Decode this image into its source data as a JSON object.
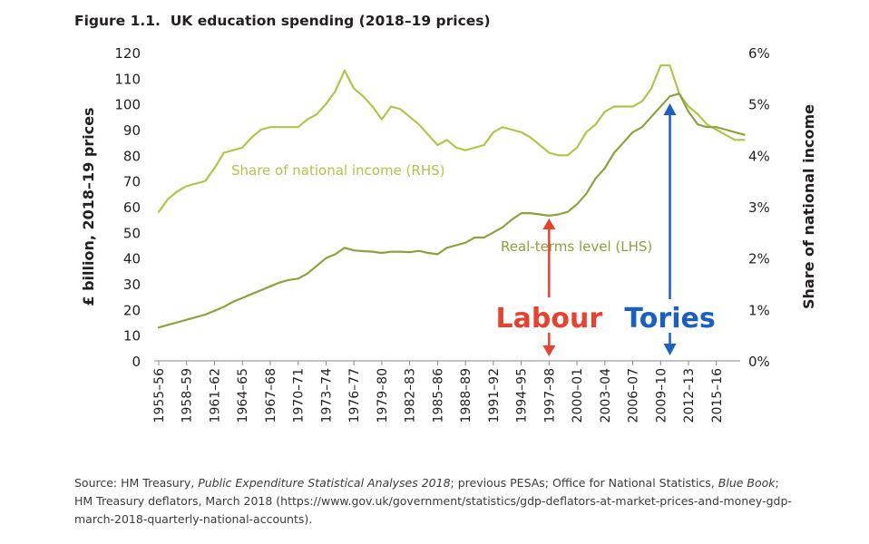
{
  "figure": {
    "title": "Figure 1.1.  UK education spending (2018–19 prices)"
  },
  "chart_data": {
    "type": "line",
    "x_tick_labels": [
      "1955–56",
      "1958–59",
      "1961–62",
      "1964–65",
      "1967–68",
      "1970–71",
      "1973–74",
      "1976–77",
      "1979–80",
      "1982–83",
      "1985–86",
      "1988–89",
      "1991–92",
      "1994–95",
      "1997–98",
      "2000–01",
      "2003–04",
      "2006–07",
      "2009–10",
      "2012–13",
      "2015–16"
    ],
    "x_start_year": 1955,
    "x_end_year": 2018,
    "ylabel_left": "£ billion, 2018–19 prices",
    "ylabel_right": "Share of national income",
    "ylim_left": [
      0,
      120
    ],
    "ylim_right": [
      0,
      6
    ],
    "yticks_left": [
      "0",
      "10",
      "20",
      "30",
      "40",
      "50",
      "60",
      "70",
      "80",
      "90",
      "100",
      "110",
      "120"
    ],
    "yticks_right": [
      "0%",
      "1%",
      "2%",
      "3%",
      "4%",
      "5%",
      "6%"
    ],
    "grid": false,
    "legend": "inline labels",
    "colors": {
      "series": "#b5c34a",
      "level_line": "#8ea13d",
      "labour": "#e8412e",
      "tories": "#1a5fc2"
    },
    "series": [
      {
        "name": "Share of national income (RHS)",
        "axis": "right",
        "x": [
          1955,
          1956,
          1957,
          1958,
          1959,
          1960,
          1961,
          1962,
          1963,
          1964,
          1965,
          1966,
          1967,
          1968,
          1969,
          1970,
          1971,
          1972,
          1973,
          1974,
          1975,
          1976,
          1977,
          1978,
          1979,
          1980,
          1981,
          1982,
          1983,
          1984,
          1985,
          1986,
          1987,
          1988,
          1989,
          1990,
          1991,
          1992,
          1993,
          1994,
          1995,
          1996,
          1997,
          1998,
          1999,
          2000,
          2001,
          2002,
          2003,
          2004,
          2005,
          2006,
          2007,
          2008,
          2009,
          2010,
          2011,
          2012,
          2013,
          2014,
          2015,
          2016,
          2017,
          2018
        ],
        "values": [
          2.9,
          3.15,
          3.3,
          3.4,
          3.45,
          3.5,
          3.75,
          4.05,
          4.1,
          4.15,
          4.35,
          4.5,
          4.55,
          4.55,
          4.55,
          4.55,
          4.7,
          4.8,
          5.0,
          5.25,
          5.65,
          5.3,
          5.15,
          4.95,
          4.7,
          4.95,
          4.9,
          4.75,
          4.6,
          4.4,
          4.2,
          4.3,
          4.15,
          4.1,
          4.15,
          4.2,
          4.45,
          4.55,
          4.5,
          4.45,
          4.35,
          4.2,
          4.05,
          4.0,
          4.0,
          4.15,
          4.45,
          4.6,
          4.85,
          4.95,
          4.95,
          4.95,
          5.05,
          5.3,
          5.75,
          5.75,
          5.2,
          4.95,
          4.8,
          4.6,
          4.5,
          4.4,
          4.3,
          4.3
        ]
      },
      {
        "name": "Real-terms level (LHS)",
        "axis": "left",
        "x": [
          1955,
          1956,
          1957,
          1958,
          1959,
          1960,
          1961,
          1962,
          1963,
          1964,
          1965,
          1966,
          1967,
          1968,
          1969,
          1970,
          1971,
          1972,
          1973,
          1974,
          1975,
          1976,
          1977,
          1978,
          1979,
          1980,
          1981,
          1982,
          1983,
          1984,
          1985,
          1986,
          1987,
          1988,
          1989,
          1990,
          1991,
          1992,
          1993,
          1994,
          1995,
          1996,
          1997,
          1998,
          1999,
          2000,
          2001,
          2002,
          2003,
          2004,
          2005,
          2006,
          2007,
          2008,
          2009,
          2010,
          2011,
          2012,
          2013,
          2014,
          2015,
          2016,
          2017,
          2018
        ],
        "values": [
          13,
          14,
          15,
          16,
          17,
          18,
          19.5,
          21,
          23,
          24.5,
          26,
          27.5,
          29,
          30.5,
          31.5,
          32,
          34,
          37,
          40,
          41.5,
          44,
          43,
          42.7,
          42.5,
          42,
          42.5,
          42.5,
          42.3,
          42.8,
          42,
          41.5,
          44,
          45,
          46,
          48,
          48,
          50,
          52,
          55,
          57.5,
          57.5,
          57,
          56.5,
          57,
          58,
          61,
          65,
          71,
          75,
          81,
          85,
          89,
          91,
          95,
          99,
          103,
          104,
          97,
          92,
          91,
          91,
          90,
          89,
          88
        ]
      }
    ],
    "annotations": [
      {
        "text": "Share of national income (RHS)"
      },
      {
        "text": "Real-terms level (LHS)"
      },
      {
        "text": "Labour"
      },
      {
        "text": "Tories"
      }
    ]
  },
  "source": {
    "prefix": "Source: HM Treasury, ",
    "pesa_italic": "Public Expenditure Statistical Analyses 2018",
    "middle": "; previous PESAs; Office for National Statistics, ",
    "bluebook_italic": "Blue Book",
    "suffix": "; HM Treasury deflators, March 2018 (https://www.gov.uk/government/statistics/gdp-deflators-at-market-prices-and-money-gdp-march-2018-quarterly-national-accounts)."
  }
}
